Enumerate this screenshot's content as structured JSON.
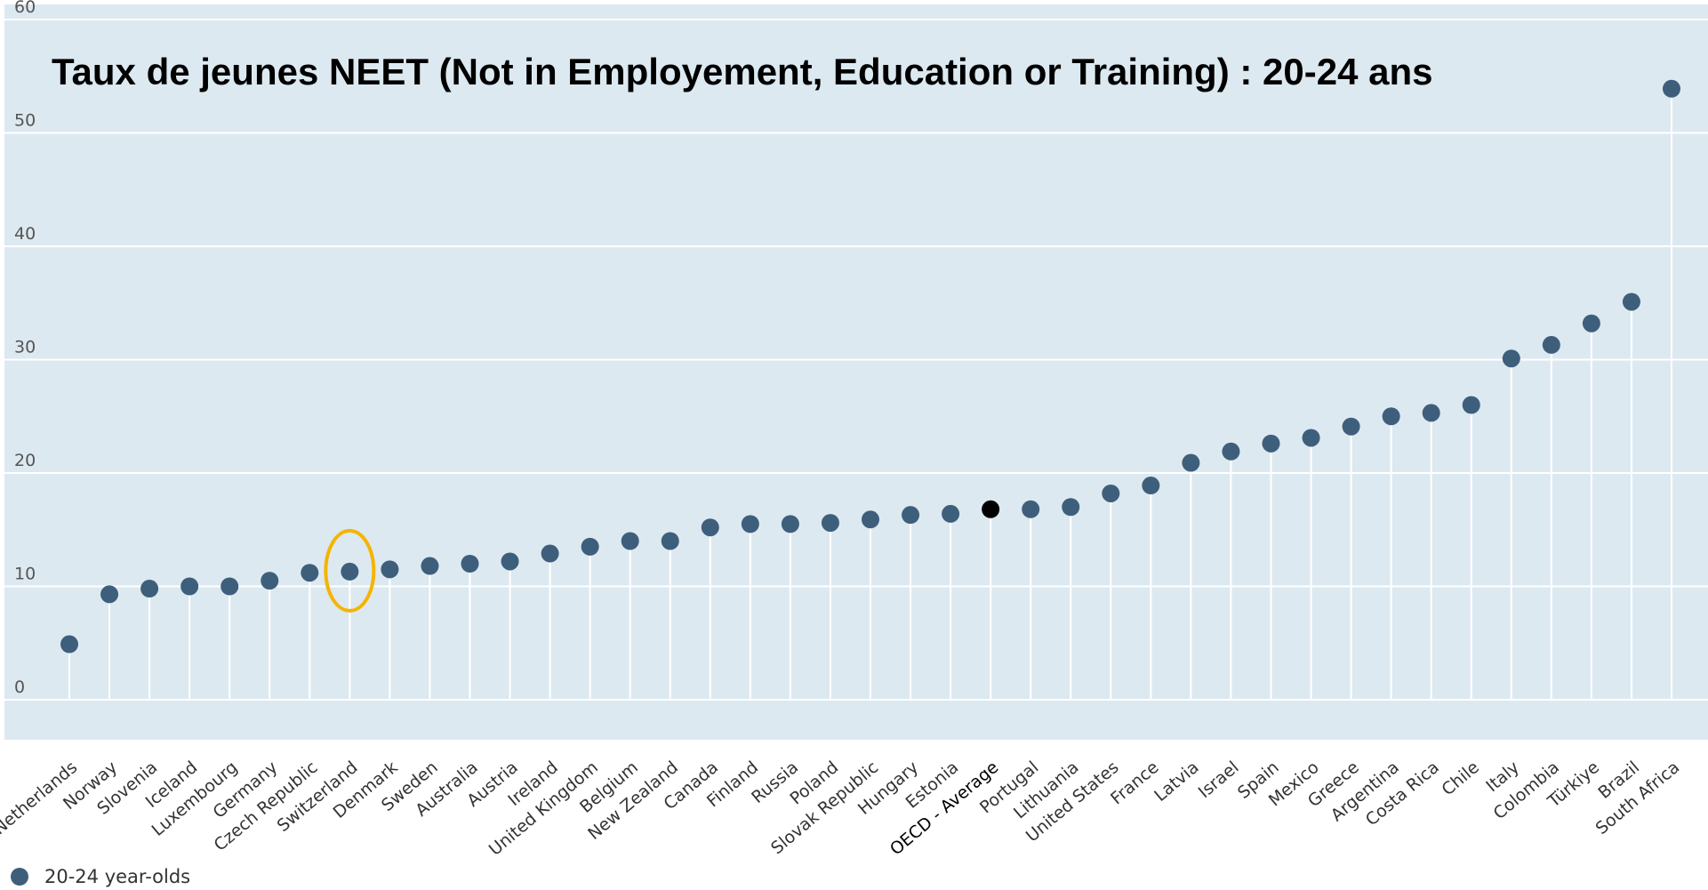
{
  "chart_data": {
    "type": "scatter",
    "title": "Taux de jeunes NEET (Not in Employement, Education or Training) : 20-24 ans",
    "xlabel": "",
    "ylabel": "",
    "ylim": [
      0,
      60
    ],
    "yticks": [
      "0",
      "10",
      "20",
      "30",
      "40",
      "50",
      "60"
    ],
    "grid": true,
    "legend_position": "bottom-left",
    "colors": {
      "plot_background": "#dde9f0",
      "marker": "#3e5f7c",
      "highlight_marker": "#000000",
      "gridline": "#ffffff",
      "circle_annotation": "#f5b400"
    },
    "categories": [
      "Netherlands",
      "Norway",
      "Slovenia",
      "Iceland",
      "Luxembourg",
      "Germany",
      "Czech Republic",
      "Switzerland",
      "Denmark",
      "Sweden",
      "Australia",
      "Austria",
      "Ireland",
      "United Kingdom",
      "Belgium",
      "New Zealand",
      "Canada",
      "Finland",
      "Russia",
      "Poland",
      "Slovak Republic",
      "Hungary",
      "Estonia",
      "OECD - Average",
      "Portugal",
      "Lithuania",
      "United States",
      "France",
      "Latvia",
      "Israel",
      "Spain",
      "Mexico",
      "Greece",
      "Argentina",
      "Costa Rica",
      "Chile",
      "Italy",
      "Colombia",
      "Türkiye",
      "Brazil",
      "South Africa"
    ],
    "series": [
      {
        "name": "20-24 year-olds",
        "values": [
          4.9,
          9.3,
          9.8,
          10.0,
          10.0,
          10.5,
          11.2,
          11.3,
          11.5,
          11.8,
          12.0,
          12.2,
          12.9,
          13.5,
          14.0,
          14.0,
          15.2,
          15.5,
          15.5,
          15.6,
          15.9,
          16.3,
          16.4,
          16.8,
          16.8,
          17.0,
          18.2,
          18.9,
          20.9,
          21.9,
          22.6,
          23.1,
          24.1,
          25.0,
          25.3,
          26.0,
          30.1,
          31.3,
          33.2,
          35.1,
          53.9
        ]
      }
    ],
    "highlight_category": "OECD - Average",
    "annotation_circle_category": "Switzerland"
  }
}
